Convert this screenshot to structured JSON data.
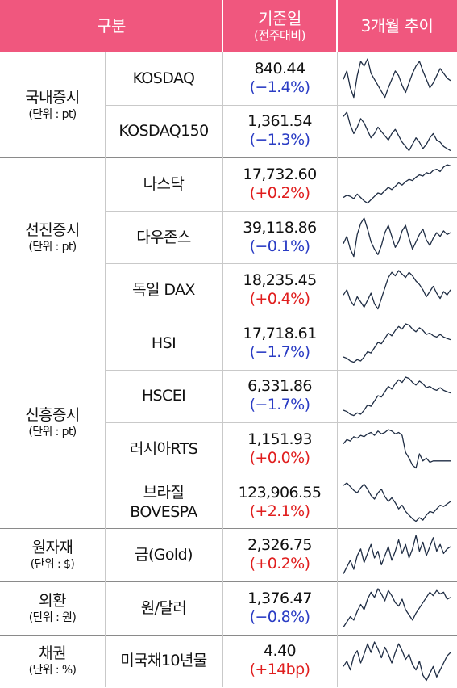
{
  "header": {
    "category": "구분",
    "base_date": "기준일",
    "base_date_sub": "(전주대비)",
    "trend": "3개월 추이"
  },
  "colors": {
    "header_bg": "#f0577e",
    "down": "#2a3cc4",
    "up": "#e01e1e",
    "spark": "#1f2d44"
  },
  "categories": [
    {
      "name": "국내증시",
      "unit": "(단위 : pt)",
      "items": [
        {
          "name": "KOSDAQ",
          "value": "840.44",
          "change": "(−1.4%)",
          "dir": "down",
          "trend": [
            55,
            62,
            48,
            40,
            58,
            70,
            66,
            72,
            60,
            55,
            50,
            45,
            40,
            48,
            55,
            62,
            58,
            50,
            44,
            52,
            60,
            66,
            70,
            62,
            55,
            48,
            52,
            58,
            64,
            60,
            56,
            54
          ]
        },
        {
          "name": "KOSDAQ150",
          "value": "1,361.54",
          "change": "(−1.3%)",
          "dir": "down",
          "trend": [
            68,
            72,
            60,
            52,
            58,
            66,
            62,
            55,
            48,
            52,
            58,
            54,
            50,
            46,
            52,
            56,
            50,
            44,
            40,
            36,
            42,
            48,
            44,
            38,
            42,
            48,
            52,
            46,
            44,
            40,
            38,
            36
          ]
        }
      ]
    },
    {
      "name": "선진증시",
      "unit": "(단위 : pt)",
      "items": [
        {
          "name": "나스닥",
          "value": "17,732.60",
          "change": "(+0.2%)",
          "dir": "up",
          "trend": [
            30,
            34,
            32,
            28,
            36,
            30,
            24,
            20,
            26,
            32,
            38,
            36,
            42,
            48,
            44,
            50,
            56,
            52,
            58,
            62,
            60,
            66,
            70,
            68,
            74,
            72,
            78,
            80,
            76,
            84,
            88,
            86
          ]
        },
        {
          "name": "다우존스",
          "value": "39,118.86",
          "change": "(−0.1%)",
          "dir": "down",
          "trend": [
            50,
            58,
            44,
            36,
            60,
            72,
            78,
            66,
            52,
            44,
            38,
            48,
            62,
            70,
            58,
            46,
            52,
            64,
            70,
            56,
            44,
            52,
            60,
            66,
            54,
            48,
            56,
            62,
            58,
            64,
            60,
            62
          ]
        },
        {
          "name": "독일 DAX",
          "value": "18,235.45",
          "change": "(+0.4%)",
          "dir": "up",
          "trend": [
            50,
            56,
            44,
            38,
            48,
            42,
            36,
            44,
            52,
            40,
            34,
            46,
            58,
            70,
            76,
            72,
            78,
            74,
            70,
            76,
            72,
            66,
            62,
            56,
            48,
            54,
            60,
            52,
            46,
            54,
            50,
            56
          ]
        }
      ]
    },
    {
      "name": "신흥증시",
      "unit": "(단위 : pt)",
      "items": [
        {
          "name": "HSI",
          "value": "17,718.61",
          "change": "(−1.7%)",
          "dir": "down",
          "trend": [
            30,
            28,
            24,
            22,
            26,
            24,
            30,
            38,
            36,
            44,
            52,
            50,
            58,
            66,
            62,
            70,
            76,
            72,
            80,
            78,
            72,
            68,
            74,
            70,
            64,
            66,
            62,
            60,
            64,
            60,
            58,
            56
          ]
        },
        {
          "name": "HSCEI",
          "value": "6,331.86",
          "change": "(−1.7%)",
          "dir": "down",
          "trend": [
            28,
            26,
            22,
            20,
            24,
            22,
            28,
            36,
            34,
            42,
            50,
            48,
            56,
            64,
            60,
            68,
            74,
            70,
            78,
            76,
            70,
            66,
            72,
            68,
            62,
            64,
            60,
            58,
            62,
            58,
            56,
            54
          ]
        },
        {
          "name": "러시아RTS",
          "value": "1,151.93",
          "change": "(+0.0%)",
          "dir": "up",
          "trend": [
            60,
            66,
            64,
            70,
            68,
            72,
            70,
            74,
            76,
            72,
            78,
            74,
            76,
            80,
            78,
            74,
            76,
            72,
            48,
            40,
            30,
            26,
            46,
            36,
            40,
            34,
            36,
            36,
            36,
            36,
            36,
            36
          ]
        },
        {
          "name": "브라질\nBOVESPA",
          "value": "123,906.55",
          "change": "(+2.1%)",
          "dir": "up",
          "trend": [
            78,
            82,
            76,
            70,
            66,
            74,
            80,
            72,
            62,
            56,
            66,
            72,
            60,
            52,
            58,
            50,
            40,
            46,
            36,
            30,
            24,
            20,
            26,
            22,
            30,
            36,
            34,
            40,
            46,
            44,
            48,
            52
          ]
        }
      ]
    },
    {
      "name": "원자재",
      "unit": "(단위 : $)",
      "items": [
        {
          "name": "금(Gold)",
          "value": "2,326.75",
          "change": "(+0.2%)",
          "dir": "up",
          "trend": [
            40,
            46,
            52,
            44,
            56,
            62,
            50,
            58,
            66,
            54,
            60,
            48,
            56,
            64,
            52,
            60,
            70,
            58,
            66,
            54,
            62,
            74,
            60,
            68,
            56,
            64,
            72,
            60,
            66,
            58,
            62,
            64
          ]
        }
      ]
    },
    {
      "name": "외환",
      "unit": "(단위 : 원)",
      "items": [
        {
          "name": "원/달러",
          "value": "1,376.47",
          "change": "(−0.8%)",
          "dir": "down",
          "trend": [
            30,
            36,
            42,
            38,
            48,
            56,
            50,
            62,
            70,
            64,
            74,
            68,
            60,
            72,
            66,
            58,
            54,
            62,
            50,
            44,
            38,
            46,
            52,
            58,
            64,
            70,
            66,
            72,
            68,
            70,
            62,
            64
          ]
        }
      ]
    },
    {
      "name": "채권",
      "unit": "(단위 : %)",
      "items": [
        {
          "name": "미국채10년물",
          "value": "4.40",
          "change": "(+14bp)",
          "dir": "up",
          "trend": [
            44,
            50,
            40,
            56,
            62,
            48,
            58,
            70,
            60,
            72,
            64,
            54,
            66,
            58,
            48,
            60,
            70,
            62,
            52,
            58,
            46,
            40,
            50,
            34,
            28,
            36,
            44,
            32,
            40,
            48,
            56,
            60
          ]
        }
      ]
    }
  ]
}
